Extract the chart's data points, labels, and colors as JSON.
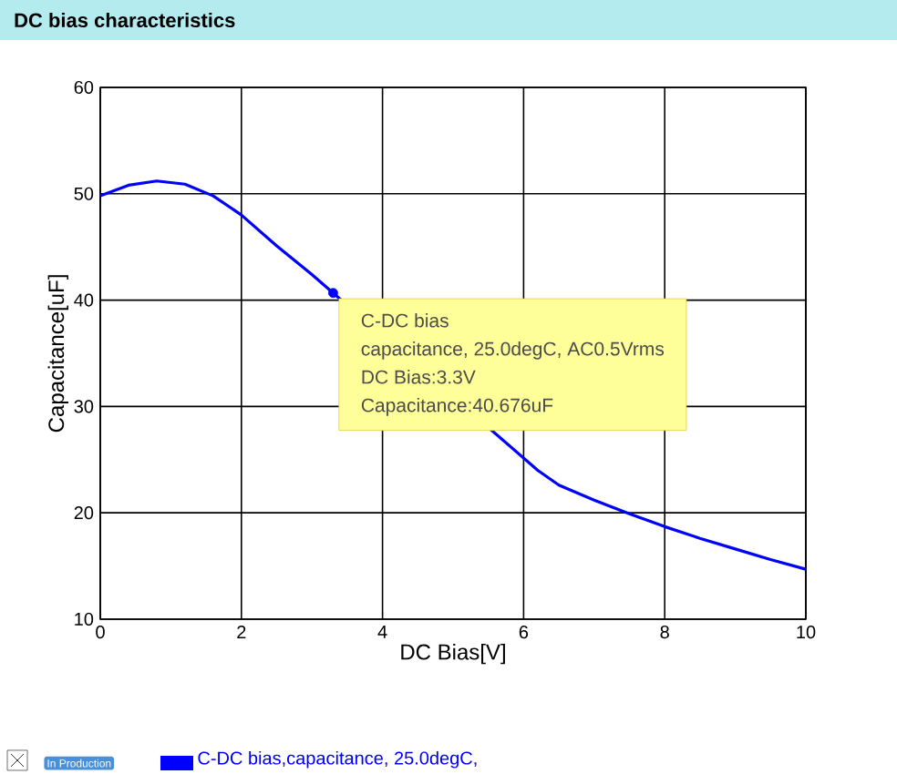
{
  "chart_data": {
    "type": "line",
    "title": "DC bias characteristics",
    "xlabel": "DC Bias[V]",
    "ylabel": "Capacitance[uF]",
    "xlim": [
      0,
      10
    ],
    "ylim": [
      10,
      60
    ],
    "xticks": [
      0,
      2,
      4,
      6,
      8,
      10
    ],
    "yticks": [
      10,
      20,
      30,
      40,
      50,
      60
    ],
    "grid": true,
    "legend": "bottom",
    "series": [
      {
        "name": "C-DC bias,capacitance, 25.0degC,",
        "color": "#0000ff",
        "marker": "none",
        "x": [
          0,
          0.4,
          0.8,
          1.2,
          1.6,
          2,
          2.5,
          3,
          3.3,
          6.2,
          6.5,
          7,
          7.5,
          8,
          8.5,
          9,
          9.5,
          10
        ],
        "values": [
          49.8,
          50.8,
          51.2,
          50.9,
          49.8,
          48.0,
          45.1,
          42.4,
          40.676,
          24.0,
          22.6,
          21.2,
          19.9,
          18.7,
          17.6,
          16.6,
          15.6,
          14.7
        ]
      },
      {
        "type": "scatter",
        "color": "#0000ff",
        "marker": "circle",
        "x": [
          3.3
        ],
        "values": [
          40.676
        ]
      }
    ],
    "annotations": [
      "C-DC bias",
      "capacitance, 25.0degC, AC0.5Vrms",
      "DC Bias:3.3V",
      "Capacitance:40.676uF",
      "In Production"
    ]
  }
}
